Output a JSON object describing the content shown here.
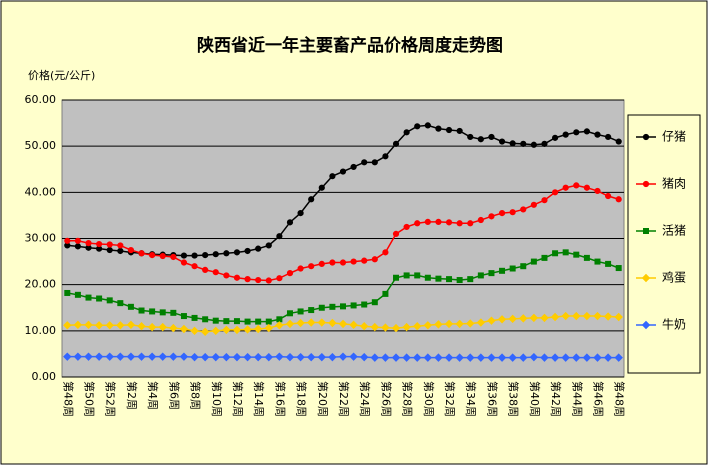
{
  "chart_data": {
    "type": "line",
    "title": "陕西省近一年主要畜产品价格周度走势图",
    "y_label": "价格(元/公斤)",
    "categories": [
      "第48周",
      null,
      "第50周",
      null,
      "第52周",
      null,
      "第2周",
      null,
      "第4周",
      null,
      "第6周",
      null,
      "第8周",
      null,
      "第10周",
      null,
      "第12周",
      null,
      "第14周",
      null,
      "第16周",
      null,
      "第18周",
      null,
      "第20周",
      null,
      "第22周",
      null,
      "第24周",
      null,
      "第26周",
      null,
      "第28周",
      null,
      "第30周",
      null,
      "第32周",
      null,
      "第34周",
      null,
      "第36周",
      null,
      "第38周",
      null,
      "第40周",
      null,
      "第42周",
      null,
      "第44周",
      null,
      "第46周",
      null,
      "第48周"
    ],
    "series": [
      {
        "name": "仔猪",
        "color": "#000000",
        "marker": "circle",
        "values": [
          28.5,
          28.3,
          28,
          27.8,
          27.5,
          27.3,
          27,
          26.8,
          26.6,
          26.5,
          26.4,
          26.3,
          26.3,
          26.4,
          26.6,
          26.8,
          27,
          27.3,
          27.8,
          28.5,
          30.5,
          33.5,
          35.5,
          38.5,
          41,
          43.5,
          44.5,
          45.5,
          46.5,
          46.5,
          47.8,
          50.5,
          53,
          54.3,
          54.5,
          53.8,
          53.5,
          53.3,
          52,
          51.5,
          52,
          51,
          50.6,
          50.5,
          50.3,
          50.5,
          51.8,
          52.5,
          53,
          53.2,
          52.5,
          52,
          51
        ]
      },
      {
        "name": "猪肉",
        "color": "#ff0000",
        "marker": "circle",
        "values": [
          29.5,
          29.5,
          29,
          28.8,
          28.7,
          28.5,
          27.5,
          26.8,
          26.4,
          26.2,
          26,
          24.8,
          24,
          23.2,
          22.7,
          22,
          21.5,
          21.2,
          21,
          20.9,
          21.4,
          22.5,
          23.5,
          24,
          24.5,
          24.8,
          24.8,
          25,
          25.2,
          25.5,
          27,
          31,
          32.5,
          33.3,
          33.6,
          33.6,
          33.5,
          33.3,
          33.3,
          34,
          34.8,
          35.5,
          35.7,
          36.3,
          37.3,
          38.3,
          40,
          41,
          41.5,
          41,
          40.3,
          39.2,
          38.5
        ]
      },
      {
        "name": "活猪",
        "color": "#008000",
        "marker": "square",
        "values": [
          18.2,
          17.8,
          17.2,
          17,
          16.6,
          16,
          15.2,
          14.4,
          14.2,
          14,
          13.9,
          13.2,
          12.8,
          12.5,
          12.2,
          12.1,
          12.1,
          12,
          12,
          12,
          12.5,
          13.8,
          14.2,
          14.5,
          15,
          15.2,
          15.3,
          15.5,
          15.7,
          16.2,
          18,
          21.5,
          22,
          22,
          21.5,
          21.3,
          21.2,
          21,
          21.2,
          22,
          22.5,
          23,
          23.5,
          24,
          25,
          25.8,
          26.8,
          27,
          26.5,
          25.8,
          25,
          24.5,
          23.6
        ]
      },
      {
        "name": "鸡蛋",
        "color": "#ffcc00",
        "marker": "diamond",
        "values": [
          11.2,
          11.3,
          11.3,
          11.2,
          11.2,
          11.2,
          11.3,
          11,
          10.8,
          10.8,
          10.6,
          10.4,
          10,
          9.8,
          10,
          10.2,
          10.2,
          10.3,
          10.4,
          10.6,
          11.2,
          11.5,
          11.7,
          11.8,
          11.8,
          11.7,
          11.5,
          11.3,
          11,
          10.8,
          10.7,
          10.6,
          10.8,
          11,
          11.2,
          11.4,
          11.5,
          11.5,
          11.6,
          11.8,
          12.2,
          12.5,
          12.6,
          12.7,
          12.8,
          12.8,
          13,
          13.2,
          13.2,
          13.2,
          13.2,
          13.1,
          13
        ]
      },
      {
        "name": "牛奶",
        "color": "#3366ff",
        "marker": "diamond",
        "values": [
          4.4,
          4.4,
          4.4,
          4.4,
          4.4,
          4.4,
          4.4,
          4.4,
          4.4,
          4.4,
          4.4,
          4.4,
          4.3,
          4.3,
          4.3,
          4.3,
          4.3,
          4.3,
          4.3,
          4.3,
          4.4,
          4.3,
          4.3,
          4.3,
          4.3,
          4.3,
          4.4,
          4.4,
          4.3,
          4.2,
          4.2,
          4.2,
          4.2,
          4.2,
          4.2,
          4.2,
          4.2,
          4.2,
          4.2,
          4.2,
          4.2,
          4.2,
          4.2,
          4.2,
          4.3,
          4.2,
          4.2,
          4.2,
          4.2,
          4.2,
          4.2,
          4.2,
          4.2
        ]
      }
    ],
    "ylim": [
      0,
      60
    ],
    "yticks": [
      {
        "value": 0,
        "label": "0.00"
      },
      {
        "value": 10,
        "label": "10.00"
      },
      {
        "value": 20,
        "label": "20.00"
      },
      {
        "value": 30,
        "label": "30.00"
      },
      {
        "value": 40,
        "label": "40.00"
      },
      {
        "value": 50,
        "label": "50.00"
      },
      {
        "value": 60,
        "label": "60.00"
      }
    ],
    "grid": true,
    "legend": "right"
  }
}
